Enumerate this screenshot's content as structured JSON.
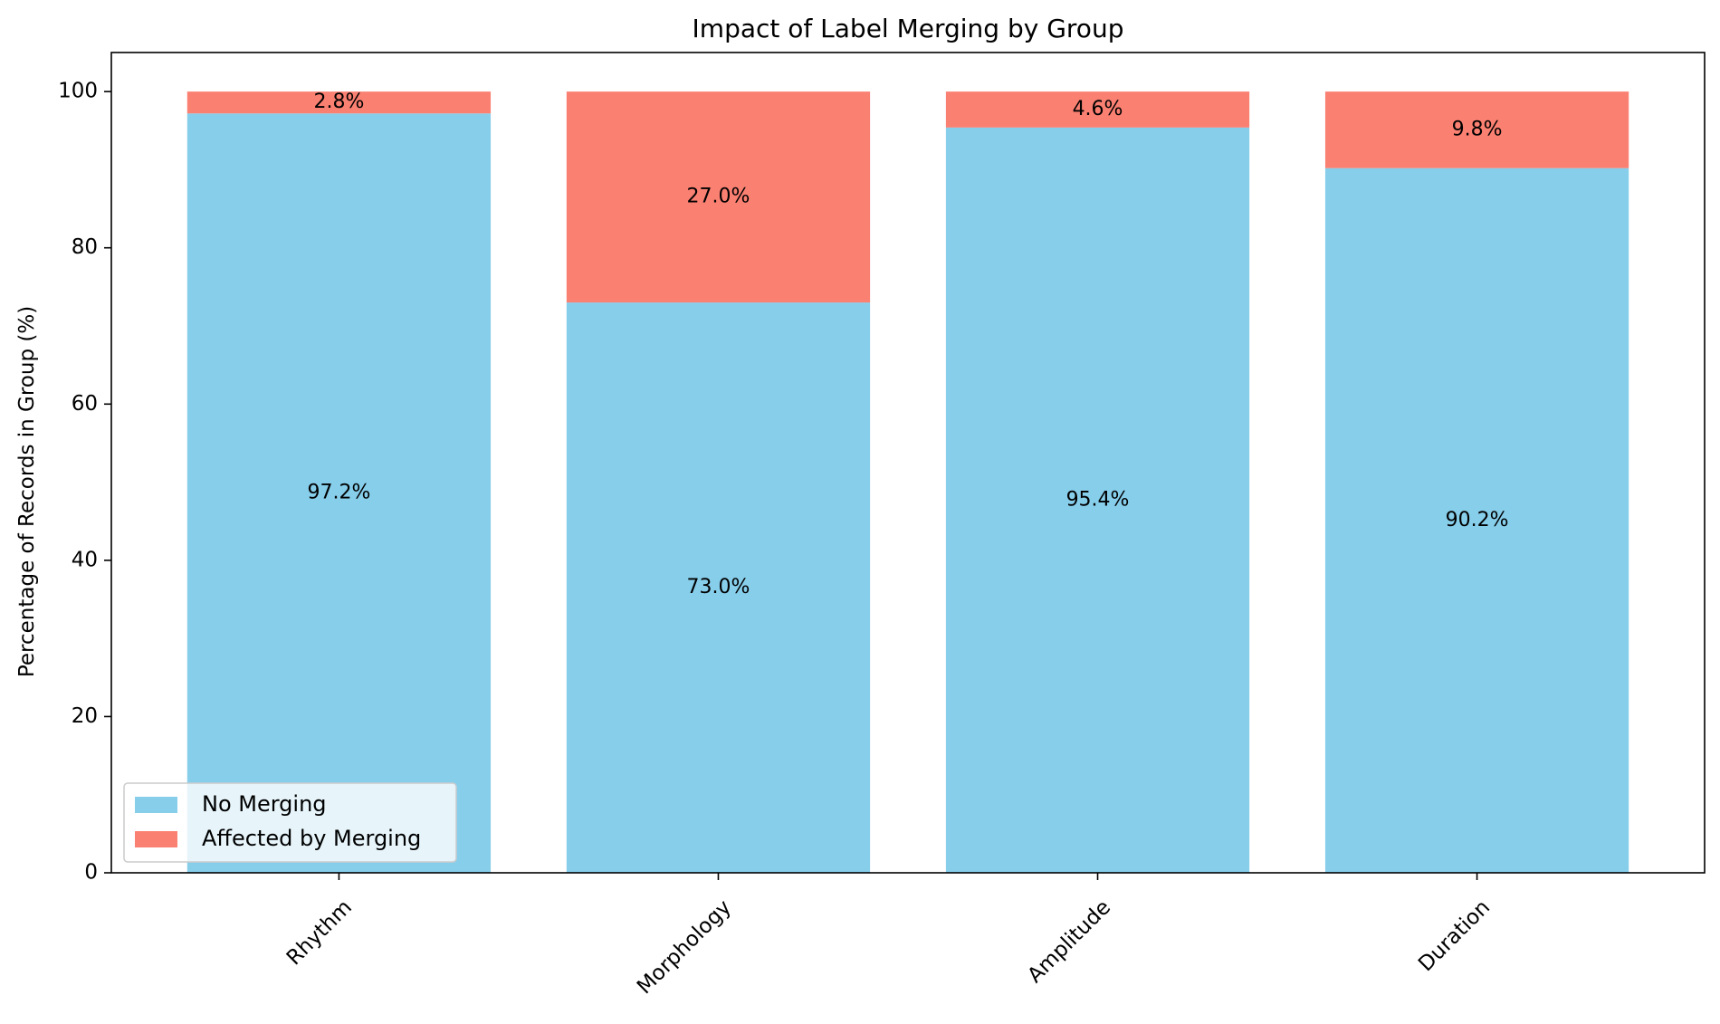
{
  "chart_data": {
    "type": "bar",
    "stacked": true,
    "title": "Impact of Label Merging by Group",
    "xlabel": "",
    "ylabel": "Percentage of Records in Group (%)",
    "categories": [
      "Rhythm",
      "Morphology",
      "Amplitude",
      "Duration"
    ],
    "ylim": [
      0,
      105
    ],
    "yticks": [
      0,
      20,
      40,
      60,
      80,
      100
    ],
    "grid": false,
    "legend_position": "lower-left",
    "series": [
      {
        "name": "No Merging",
        "values": [
          97.2,
          73.0,
          95.4,
          90.2
        ],
        "labels": [
          "97.2%",
          "73.0%",
          "95.4%",
          "90.2%"
        ],
        "color": "#87CEEB"
      },
      {
        "name": "Affected by Merging",
        "values": [
          2.8,
          27.0,
          4.6,
          9.8
        ],
        "labels": [
          "2.8%",
          "27.0%",
          "4.6%",
          "9.8%"
        ],
        "color": "#FA8072"
      }
    ]
  }
}
